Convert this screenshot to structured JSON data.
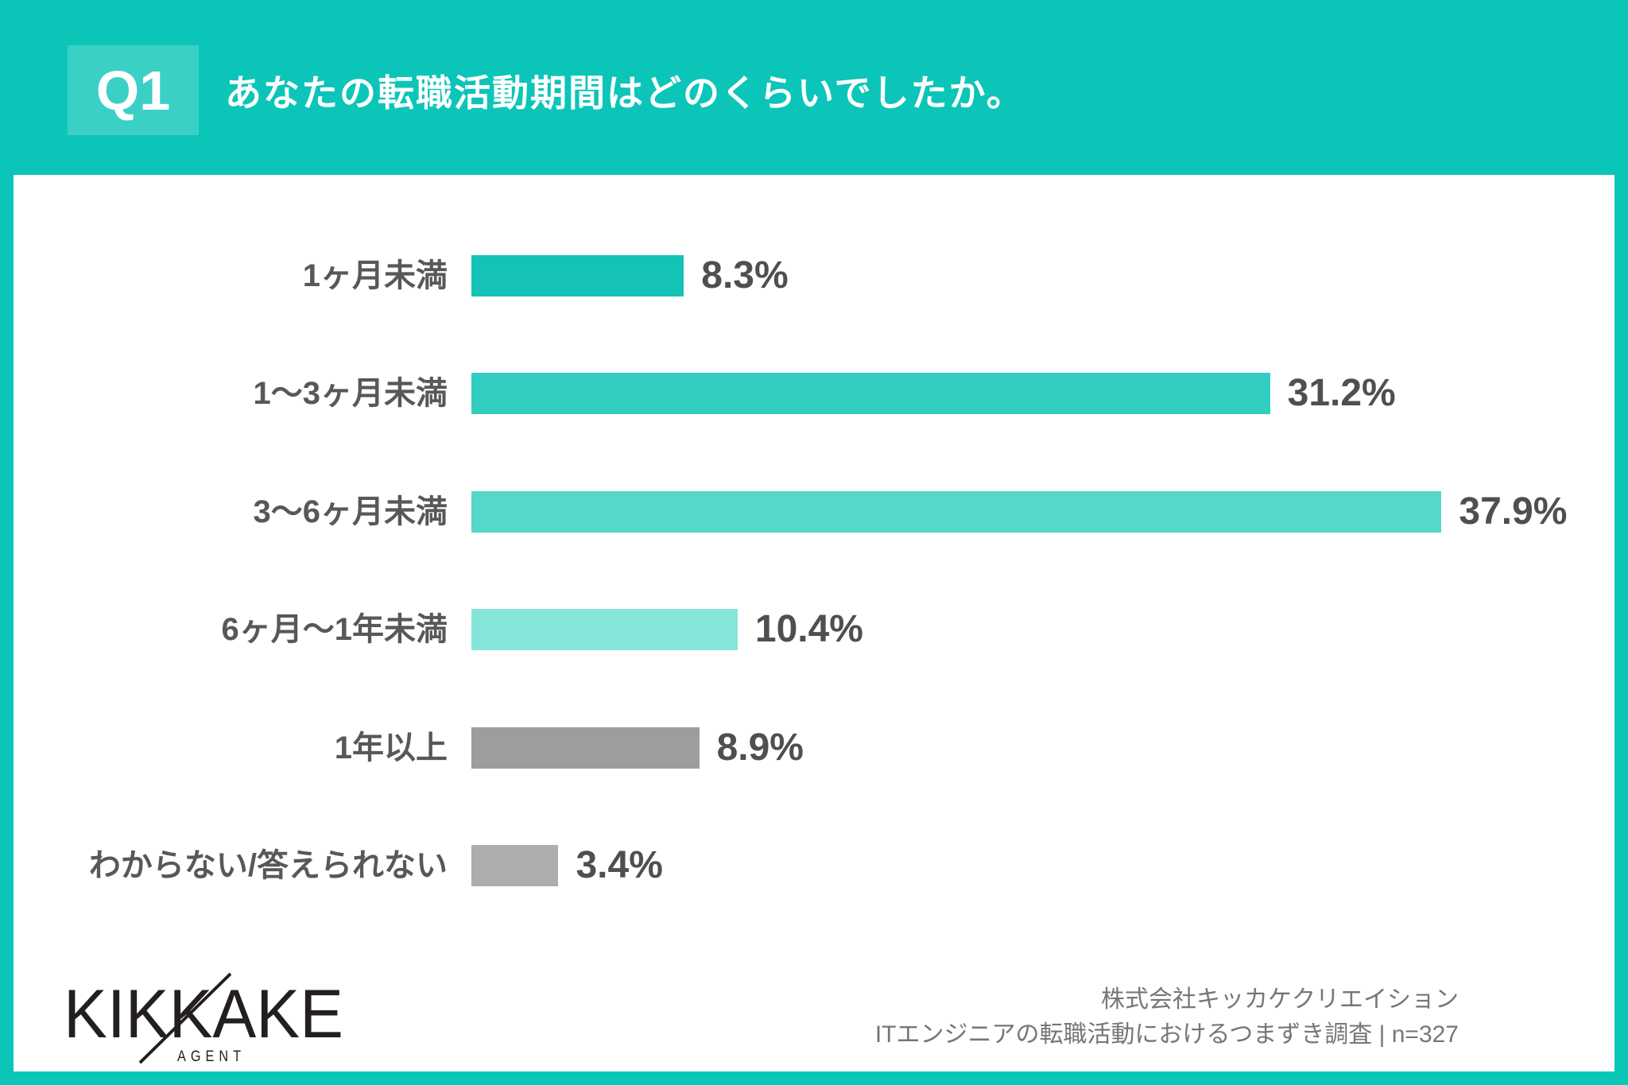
{
  "header": {
    "badge": "Q1",
    "title": "あなたの転職活動期間はどのくらいでしたか。",
    "background_color": "#0cc5b9",
    "badge_color": "#3bd0c5",
    "text_color": "#ffffff"
  },
  "chart_data": {
    "type": "bar",
    "orientation": "horizontal",
    "title": "あなたの転職活動期間はどのくらいでしたか。",
    "categories": [
      "1ヶ月未満",
      "1〜3ヶ月未満",
      "3〜6ヶ月未満",
      "6ヶ月〜1年未満",
      "1年以上",
      "わからない/答えられない"
    ],
    "values": [
      8.3,
      31.2,
      37.9,
      10.4,
      8.9,
      3.4
    ],
    "value_suffix": "%",
    "bar_colors": [
      "#14c3b5",
      "#31cdc0",
      "#55d8ca",
      "#86e5d9",
      "#9d9d9d",
      "#adadad"
    ],
    "label_color": "#5a5757",
    "value_color": "#4f4f4f",
    "xlabel": "",
    "ylabel": "",
    "xlim": [
      0,
      40
    ],
    "grid": false,
    "legend": false
  },
  "footer": {
    "logo_text": "KIKKAKE",
    "logo_sub": "AGENT",
    "source_line1": "株式会社キッカケクリエイション",
    "source_line2": "ITエンジニアの転職活動におけるつまずき調査 | n=327"
  }
}
